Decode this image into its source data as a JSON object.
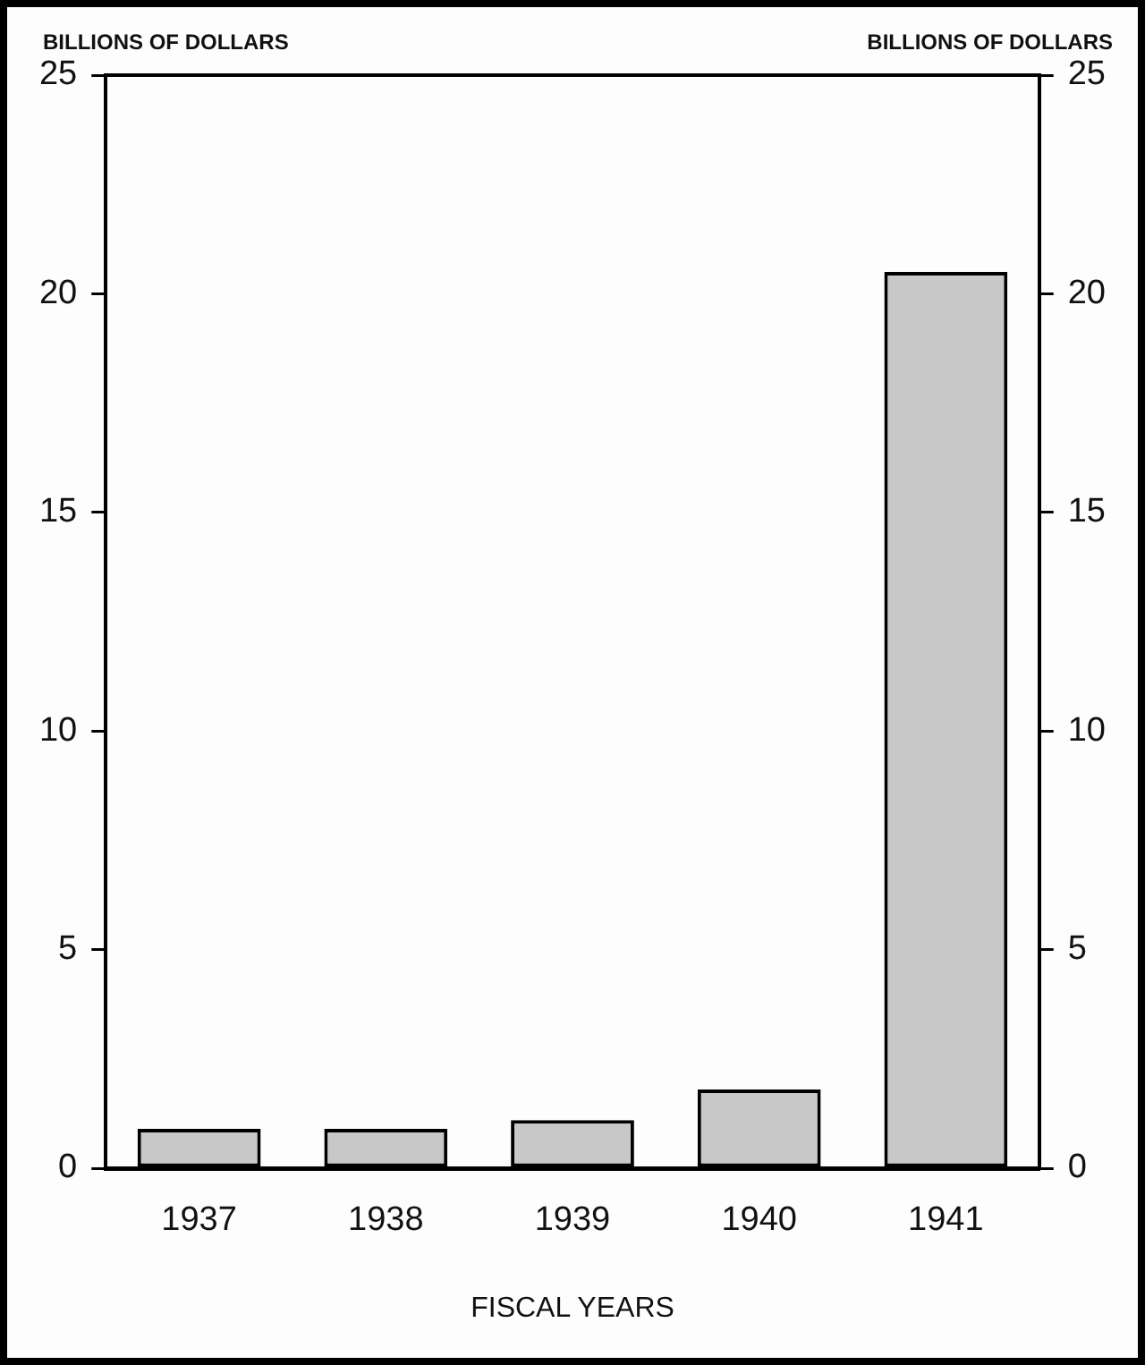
{
  "chart_data": {
    "type": "bar",
    "xlabel": "FISCAL YEARS",
    "ylabel": "BILLIONS OF DOLLARS",
    "y2label": "BILLIONS OF DOLLARS",
    "categories": [
      "1937",
      "1938",
      "1939",
      "1940",
      "1941"
    ],
    "values": [
      0.9,
      0.9,
      1.1,
      1.8,
      20.5
    ],
    "color": "#c8c8c8",
    "ylim": [
      0,
      25
    ],
    "yticks": [
      0,
      5,
      10,
      15,
      20,
      25
    ],
    "y2lim": [
      0,
      25
    ],
    "y2ticks": [
      0,
      5,
      10,
      15,
      20,
      25
    ],
    "grid": false,
    "legend": false
  }
}
